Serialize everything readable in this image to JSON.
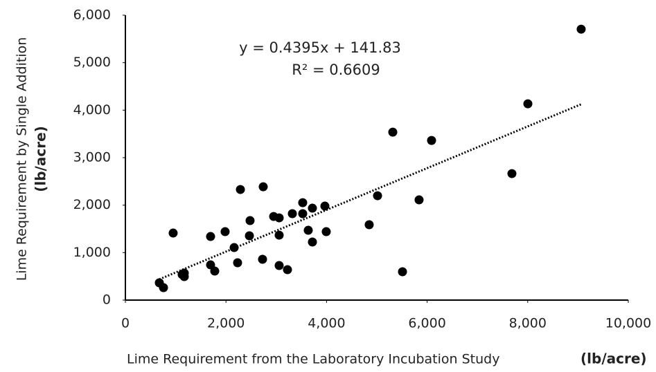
{
  "chart_data": {
    "type": "scatter",
    "y_label": "Lime Requirement by Single Addition",
    "y_label_unit": "(lb/acre)",
    "x_label": "Lime Requirement from the Laboratory Incubation Study",
    "x_label_unit": "(lb/acre)",
    "annotations": [
      "y = 0.4395x + 141.83",
      "R² = 0.6609"
    ],
    "trendline": {
      "slope": 0.4395,
      "intercept": 141.83,
      "style": "dotted"
    },
    "color": "#000000",
    "x": [
      675,
      758,
      950,
      1129,
      1171,
      1171,
      1694,
      1694,
      1777,
      1983,
      2163,
      2231,
      2287,
      2466,
      2479,
      2727,
      2741,
      2948,
      3058,
      3058,
      3058,
      3223,
      3320,
      3526,
      3526,
      3636,
      3719,
      3719,
      3967,
      3994,
      4848,
      5014,
      5317,
      5510,
      5840,
      6088,
      7686,
      8003,
      9063
    ],
    "values": [
      364,
      262,
      1412,
      539,
      495,
      568,
      1339,
      742,
      611,
      1441,
      1106,
      786,
      2329,
      1354,
      1674,
      859,
      2387,
      1761,
      1732,
      1368,
      728,
      640,
      1820,
      2052,
      1820,
      1470,
      1936,
      1223,
      1980,
      1441,
      1587,
      2198,
      3537,
      597,
      2111,
      3362,
      2664,
      4134,
      5706
    ],
    "xlim": [
      0,
      10000
    ],
    "xticks": [
      0,
      {
        "value": 2000,
        "label": "2,000"
      },
      {
        "value": 4000,
        "label": "4,000"
      },
      {
        "value": 6000,
        "label": "6,000"
      },
      {
        "value": 8000,
        "label": "8,000"
      },
      {
        "value": 10000,
        "label": "10,000"
      }
    ],
    "ylim": [
      0,
      6000
    ],
    "yticks": [
      0,
      {
        "value": 1000,
        "label": "1,000"
      },
      {
        "value": 2000,
        "label": "2,000"
      },
      {
        "value": 3000,
        "label": "3,000"
      },
      {
        "value": 4000,
        "label": "4,000"
      },
      {
        "value": 5000,
        "label": "5,000"
      },
      {
        "value": 6000,
        "label": "6,000"
      }
    ],
    "grid": false
  }
}
